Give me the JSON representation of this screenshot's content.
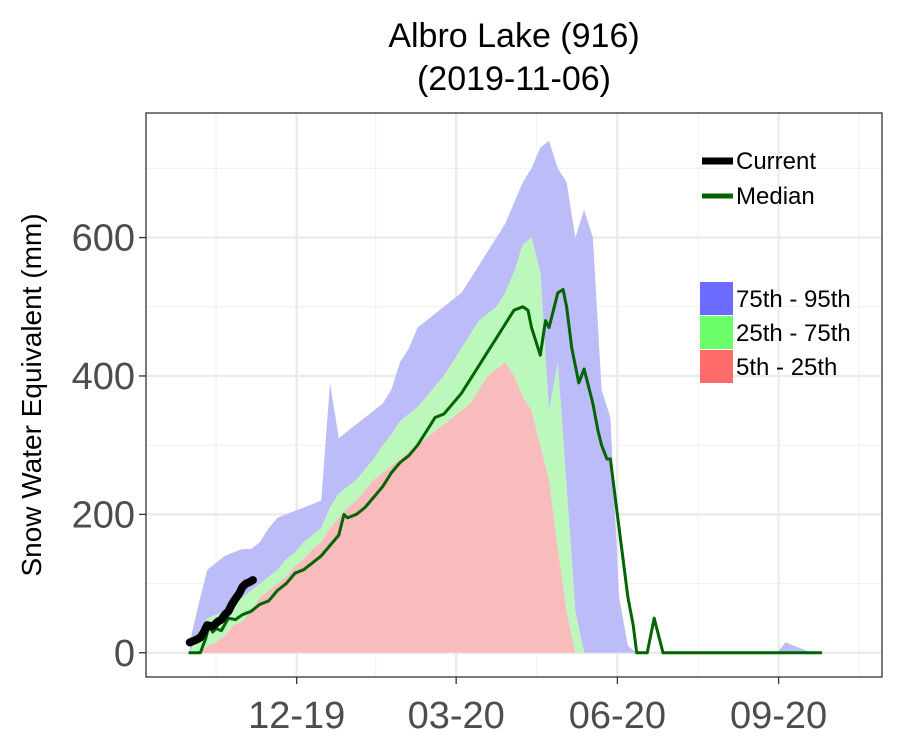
{
  "chart_data": {
    "type": "area",
    "title": "Albro Lake (916)",
    "subtitle": "(2019-11-06)",
    "xlabel": "",
    "ylabel": "Snow Water Equivalent (mm)",
    "ylim": [
      -35,
      780
    ],
    "xlim": [
      -25,
      395
    ],
    "x_unit": "days since 2019-10-01",
    "y_ticks": [
      0,
      200,
      400,
      600
    ],
    "y_tick_labels": [
      "0",
      "200",
      "400",
      "600"
    ],
    "x_ticks": [
      61,
      152,
      244,
      336
    ],
    "x_tick_labels": [
      "12-19",
      "03-20",
      "06-20",
      "09-20"
    ],
    "x_minor_ticks": [
      15,
      106,
      198,
      290,
      382
    ],
    "y_minor_ticks": [
      100,
      300,
      500,
      700
    ],
    "grid": true,
    "legend_position": "top-right",
    "colors": {
      "p75_95": "#bcbcf8",
      "p25_75": "#bcf8bc",
      "p5_25": "#f8bcbc",
      "median": "#006400",
      "current": "#000000",
      "legend_p75_95": "#6b6bff",
      "legend_p25_75": "#6bff6b",
      "legend_p5_25": "#ff6b6b"
    },
    "legend": {
      "lines": [
        {
          "key": "current",
          "label": "Current"
        },
        {
          "key": "median",
          "label": "Median"
        }
      ],
      "bands": [
        {
          "key": "p75_95",
          "label": "75th - 95th"
        },
        {
          "key": "p25_75",
          "label": "25th - 75th"
        },
        {
          "key": "p5_25",
          "label": "5th - 25th"
        }
      ]
    },
    "bands": {
      "x": [
        0,
        5,
        10,
        15,
        20,
        25,
        30,
        35,
        40,
        45,
        50,
        55,
        60,
        65,
        70,
        75,
        80,
        85,
        90,
        95,
        100,
        105,
        110,
        115,
        120,
        125,
        130,
        135,
        140,
        145,
        150,
        155,
        160,
        165,
        170,
        175,
        180,
        185,
        190,
        195,
        200,
        205,
        210,
        215,
        220,
        225,
        230,
        235,
        240,
        245,
        250,
        255,
        260,
        265,
        270,
        275,
        280,
        285,
        290,
        295,
        300,
        305,
        310,
        315,
        320,
        325,
        330,
        335,
        340,
        345,
        350,
        355,
        360
      ],
      "p95": [
        15,
        70,
        120,
        130,
        140,
        145,
        150,
        150,
        160,
        180,
        195,
        200,
        205,
        210,
        215,
        220,
        390,
        310,
        320,
        330,
        340,
        350,
        360,
        380,
        420,
        440,
        470,
        480,
        490,
        500,
        510,
        520,
        540,
        560,
        580,
        600,
        620,
        650,
        680,
        700,
        730,
        740,
        700,
        680,
        600,
        640,
        600,
        380,
        340,
        80,
        10,
        0,
        0,
        0,
        0,
        0,
        0,
        0,
        0,
        0,
        0,
        0,
        0,
        0,
        0,
        0,
        0,
        0,
        15,
        10,
        5,
        0,
        0
      ],
      "p75": [
        0,
        30,
        50,
        55,
        60,
        75,
        80,
        90,
        100,
        110,
        120,
        135,
        145,
        160,
        170,
        180,
        210,
        230,
        240,
        250,
        265,
        280,
        300,
        315,
        335,
        345,
        355,
        370,
        385,
        400,
        420,
        440,
        460,
        480,
        490,
        500,
        520,
        550,
        590,
        600,
        550,
        350,
        420,
        240,
        60,
        0,
        0,
        0,
        0,
        0,
        0,
        0,
        0,
        0,
        0,
        0,
        0,
        0,
        0,
        0,
        0,
        0,
        0,
        0,
        0,
        0,
        0,
        0,
        0,
        0,
        0,
        0,
        0
      ],
      "p25": [
        0,
        0,
        10,
        15,
        25,
        40,
        45,
        60,
        80,
        90,
        100,
        110,
        125,
        135,
        150,
        160,
        180,
        195,
        210,
        220,
        235,
        250,
        260,
        270,
        280,
        290,
        300,
        310,
        320,
        330,
        340,
        350,
        360,
        380,
        400,
        410,
        420,
        400,
        370,
        350,
        300,
        250,
        150,
        60,
        0,
        0,
        0,
        0,
        0,
        0,
        0,
        0,
        0,
        0,
        0,
        0,
        0,
        0,
        0,
        0,
        0,
        0,
        0,
        0,
        0,
        0,
        0,
        0,
        0,
        0,
        0,
        0,
        0
      ],
      "p5": [
        0,
        0,
        0,
        0,
        0,
        5,
        15,
        25,
        40,
        50,
        60,
        75,
        90,
        100,
        110,
        120,
        130,
        140,
        150,
        160,
        170,
        180,
        190,
        200,
        210,
        220,
        235,
        250,
        265,
        280,
        295,
        310,
        330,
        350,
        370,
        380,
        390,
        360,
        330,
        300,
        240,
        150,
        60,
        0,
        0,
        0,
        0,
        0,
        0,
        0,
        0,
        0,
        0,
        0,
        0,
        0,
        0,
        0,
        0,
        0,
        0,
        0,
        0,
        0,
        0,
        0,
        0,
        0,
        0,
        0,
        0
      ]
    },
    "series": [
      {
        "name": "Median",
        "x": [
          0,
          6,
          9,
          11,
          13,
          15,
          18,
          22,
          26,
          30,
          35,
          40,
          45,
          50,
          55,
          60,
          65,
          70,
          75,
          80,
          85,
          88,
          90,
          95,
          100,
          105,
          110,
          115,
          120,
          125,
          130,
          135,
          140,
          145,
          150,
          155,
          160,
          165,
          170,
          175,
          180,
          185,
          190,
          193,
          195,
          200,
          203,
          205,
          208,
          210,
          213,
          215,
          218,
          222,
          225,
          228,
          230,
          233,
          235,
          238,
          240,
          243,
          245,
          248,
          250,
          253,
          255,
          258,
          261,
          265,
          270,
          280,
          300,
          330,
          360
        ],
        "y": [
          0,
          0,
          20,
          40,
          30,
          35,
          32,
          50,
          48,
          55,
          60,
          70,
          75,
          90,
          100,
          115,
          120,
          130,
          140,
          155,
          170,
          200,
          195,
          200,
          210,
          225,
          240,
          260,
          275,
          285,
          300,
          320,
          340,
          345,
          360,
          375,
          395,
          415,
          435,
          455,
          475,
          495,
          500,
          495,
          470,
          430,
          480,
          470,
          500,
          520,
          525,
          500,
          440,
          390,
          410,
          380,
          360,
          320,
          300,
          280,
          280,
          220,
          180,
          120,
          80,
          40,
          0,
          0,
          0,
          50,
          0,
          0,
          0,
          0,
          0
        ]
      },
      {
        "name": "Current",
        "x": [
          0,
          3,
          6,
          8,
          10,
          12,
          14,
          16,
          18,
          20,
          22,
          24,
          26,
          28,
          30,
          32,
          34,
          36
        ],
        "y": [
          15,
          18,
          22,
          30,
          40,
          38,
          40,
          45,
          48,
          55,
          60,
          70,
          78,
          85,
          95,
          100,
          102,
          105
        ]
      }
    ]
  }
}
